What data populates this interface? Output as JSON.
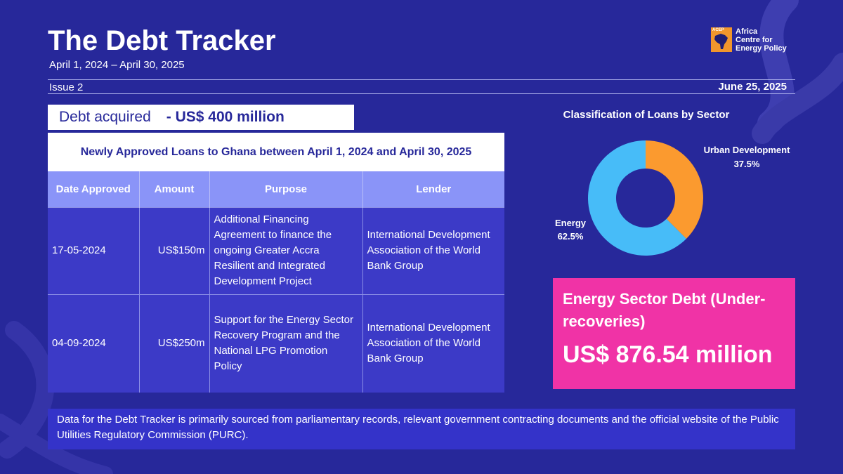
{
  "header": {
    "title": "The Debt Tracker",
    "period": "April 1, 2024 – April 30, 2025",
    "issue": "Issue 2",
    "date": "June 25, 2025"
  },
  "logo": {
    "abbr": "ACEP",
    "line1": "Africa",
    "line2": "Centre for",
    "line3": "Energy Policy",
    "color": "#f0962c"
  },
  "debt_acquired": {
    "label": "Debt acquired",
    "value": "- US$ 400 million"
  },
  "loans_table": {
    "title": "Newly Approved Loans to Ghana between April 1, 2024 and April 30, 2025",
    "headers": [
      "Date Approved",
      "Amount",
      "Purpose",
      "Lender"
    ],
    "rows": [
      {
        "date": "17-05-2024",
        "amount": "US$150m",
        "purpose": "Additional Financing Agreement to finance the ongoing Greater Accra Resilient and Integrated Development Project",
        "lender": "International Development Association of the World Bank Group"
      },
      {
        "date": "04-09-2024",
        "amount": "US$250m",
        "purpose": "Support for the Energy Sector Recovery Program and the National LPG Promotion Policy",
        "lender": "International Development Association of the World Bank Group"
      }
    ]
  },
  "chart_data": {
    "type": "pie",
    "title": "Classification of Loans by Sector",
    "hole": true,
    "slices": [
      {
        "label": "Urban Development",
        "value": 37.5,
        "display": "37.5%",
        "color": "#fb9a2f"
      },
      {
        "label": "Energy",
        "value": 62.5,
        "display": "62.5%",
        "color": "#47bcf8"
      }
    ]
  },
  "energy_debt": {
    "title": "Energy Sector Debt (Under-recoveries)",
    "value": "US$ 876.54 million"
  },
  "footer": {
    "text": "Data for the Debt Tracker is primarily sourced from parliamentary records, relevant government contracting documents and the official website of the Public Utilities Regulatory Commission (PURC)."
  },
  "colors": {
    "background": "#27289a",
    "accent_pink": "#f033a6",
    "table_header": "#8a94f8",
    "table_body": "#3c3ac7"
  }
}
